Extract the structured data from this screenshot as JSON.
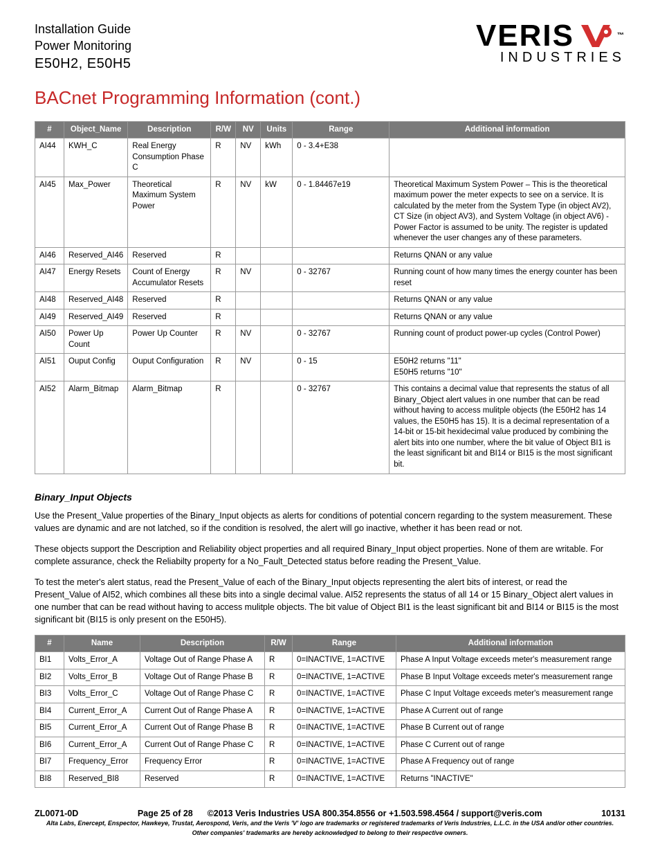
{
  "header": {
    "line1": "Installation Guide",
    "line2": "Power Monitoring",
    "model": "E50H2, E50H5",
    "logo_top": "VERIS",
    "logo_bottom": "INDUSTRIES",
    "tm": "™"
  },
  "section_title": "BACnet Programming Information (cont.)",
  "table1": {
    "headers": [
      "#",
      "Object_Name",
      "Description",
      "R/W",
      "NV",
      "Units",
      "Range",
      "Additional information"
    ],
    "rows": [
      [
        "AI44",
        "KWH_C",
        "Real Energy Consumption Phase C",
        "R",
        "NV",
        "kWh",
        "0 - 3.4+E38",
        ""
      ],
      [
        "AI45",
        "Max_Power",
        "Theoretical Maximum System Power",
        "R",
        "NV",
        "kW",
        "0 - 1.84467e19",
        "Theoretical Maximum System Power – This  is the theoretical maximum power the meter expects to see on a service. It is calculated by the meter from the System Type (in object AV2), CT Size (in object AV3), and System Voltage (in object AV6) - Power Factor is assumed to be unity.  The register is updated whenever the user changes any of these parameters."
      ],
      [
        "AI46",
        "Reserved_AI46",
        "Reserved",
        "R",
        "",
        "",
        "",
        "Returns QNAN or any value"
      ],
      [
        "AI47",
        "Energy Resets",
        "Count of Energy Accumulator Resets",
        "R",
        "NV",
        "",
        "0 - 32767",
        "Running count of how many times the energy counter has been reset"
      ],
      [
        "AI48",
        "Reserved_AI48",
        "Reserved",
        "R",
        "",
        "",
        "",
        "Returns QNAN or any value"
      ],
      [
        "AI49",
        "Reserved_AI49",
        "Reserved",
        "R",
        "",
        "",
        "",
        "Returns QNAN or any value"
      ],
      [
        "AI50",
        "Power Up Count",
        "Power Up Counter",
        "R",
        "NV",
        "",
        "0 - 32767",
        "Running count of product power-up cycles  (Control Power)"
      ],
      [
        "AI51",
        "Ouput Config",
        "Ouput Configuration",
        "R",
        "NV",
        "",
        "0 - 15",
        "E50H2 returns \"11\"\nE50H5 returns \"10\""
      ],
      [
        "AI52",
        "Alarm_Bitmap",
        "Alarm_Bitmap",
        "R",
        "",
        "",
        "0 - 32767",
        "This contains a decimal value that represents the status of all Binary_Object alert values in one number that can be read without having to access mulitple objects (the E50H2 has 14 values, the E50H5 has 15). It is a decimal representation of a 14-bit or 15-bit hexidecimal value produced by combining the alert bits into one number, where the bit value of Object BI1 is the least significant bit and BI14 or BI15 is the most significant bit."
      ]
    ]
  },
  "binary_section": {
    "heading": "Binary_Input Objects",
    "p1": "Use the Present_Value properties of the Binary_Input objects as alerts for conditions of potential concern regarding to the system measurement. These values are dynamic and are not latched, so if the condition is resolved, the alert will go inactive, whether it has been read or not.",
    "p2": "These objects support the Description and Reliability object properties and all required Binary_Input object properties. None of them are writable. For complete assurance, check the Reliabilty property for a No_Fault_Detected status before reading the Present_Value.",
    "p3": "To test the meter's alert status, read the Present_Value of each of the Binary_Input objects representing the alert bits of interest, or read the Present_Value of AI52, which combines all these bits into a single decimal value.  AI52 represents the status of all 14 or 15 Binary_Object alert values in one number that can be read without having to access mulitple objects. The bit value of Object BI1 is the least significant bit and BI14 or BI15 is the most significant bit (BI15 is only present on the E50H5)."
  },
  "table2": {
    "headers": [
      "#",
      "Name",
      "Description",
      "R/W",
      "Range",
      "Additional information"
    ],
    "rows": [
      [
        "BI1",
        "Volts_Error_A",
        "Voltage Out of Range Phase A",
        "R",
        "0=INACTIVE, 1=ACTIVE",
        "Phase A Input Voltage exceeds meter's measurement range"
      ],
      [
        "BI2",
        "Volts_Error_B",
        "Voltage Out of Range Phase B",
        "R",
        "0=INACTIVE, 1=ACTIVE",
        "Phase B Input Voltage exceeds meter's measurement range"
      ],
      [
        "BI3",
        "Volts_Error_C",
        "Voltage Out of Range Phase C",
        "R",
        "0=INACTIVE, 1=ACTIVE",
        "Phase C Input Voltage exceeds meter's measurement range"
      ],
      [
        "BI4",
        "Current_Error_A",
        "Current Out of Range Phase A",
        "R",
        "0=INACTIVE, 1=ACTIVE",
        "Phase A Current out of range"
      ],
      [
        "BI5",
        "Current_Error_A",
        "Current Out of Range Phase B",
        "R",
        "0=INACTIVE, 1=ACTIVE",
        "Phase B Current out of range"
      ],
      [
        "BI6",
        "Current_Error_A",
        "Current Out of Range Phase C",
        "R",
        "0=INACTIVE, 1=ACTIVE",
        "Phase C Current out of range"
      ],
      [
        "BI7",
        "Frequency_Error",
        "Frequency Error",
        "R",
        "0=INACTIVE, 1=ACTIVE",
        "Phase A Frequency out of range"
      ],
      [
        "BI8",
        "Reserved_BI8",
        "Reserved",
        "R",
        "0=INACTIVE, 1=ACTIVE",
        "Returns \"INACTIVE\""
      ]
    ]
  },
  "footer": {
    "doc": "ZL0071-0D",
    "page": "Page 25 of 28",
    "copyright": "©2013 Veris Industries   USA 800.354.8556 or +1.503.598.4564  / support@veris.com",
    "code": "10131",
    "tm1": "Alta Labs, Enercept, Enspector, Hawkeye, Trustat, Aerospond, Veris, and the Veris 'V' logo are trademarks or registered trademarks of Veris Industries, L.L.C. in the USA and/or other countries.",
    "tm2": "Other companies' trademarks are hereby acknowledged to belong to their respective owners."
  }
}
